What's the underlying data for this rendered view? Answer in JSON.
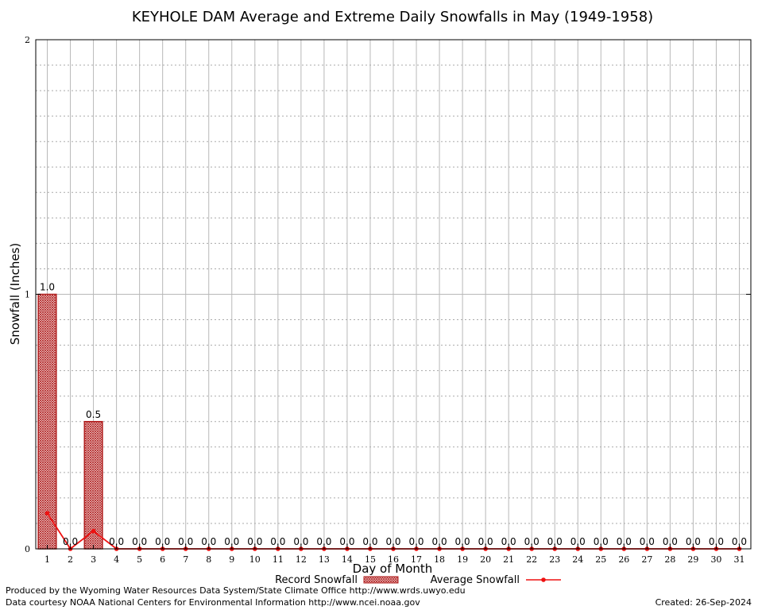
{
  "chart_data": {
    "type": "bar",
    "title": "KEYHOLE DAM Average and Extreme Daily Snowfalls in May (1949-1958)",
    "xlabel": "Day of Month",
    "ylabel": "Snowfall (Inches)",
    "ylim": [
      0,
      2
    ],
    "yticks": [
      "0",
      "1",
      "2"
    ],
    "grid": true,
    "legend_position": "bottom",
    "categories": [
      "1",
      "2",
      "3",
      "4",
      "5",
      "6",
      "7",
      "8",
      "9",
      "10",
      "11",
      "12",
      "13",
      "14",
      "15",
      "16",
      "17",
      "18",
      "19",
      "20",
      "21",
      "22",
      "23",
      "24",
      "25",
      "26",
      "27",
      "28",
      "29",
      "30",
      "31"
    ],
    "series": [
      {
        "name": "Record Snowfall",
        "type": "bar",
        "color": "#b22222",
        "values": [
          1.0,
          0.0,
          0.5,
          0.0,
          0.0,
          0.0,
          0.0,
          0.0,
          0.0,
          0.0,
          0.0,
          0.0,
          0.0,
          0.0,
          0.0,
          0.0,
          0.0,
          0.0,
          0.0,
          0.0,
          0.0,
          0.0,
          0.0,
          0.0,
          0.0,
          0.0,
          0.0,
          0.0,
          0.0,
          0.0,
          0.0
        ],
        "labels": [
          "1.0",
          "0.0",
          "0.5",
          "0.0",
          "0.0",
          "0.0",
          "0.0",
          "0.0",
          "0.0",
          "0.0",
          "0.0",
          "0.0",
          "0.0",
          "0.0",
          "0.0",
          "0.0",
          "0.0",
          "0.0",
          "0.0",
          "0.0",
          "0.0",
          "0.0",
          "0.0",
          "0.0",
          "0.0",
          "0.0",
          "0.0",
          "0.0",
          "0.0",
          "0.0",
          "0.0"
        ]
      },
      {
        "name": "Average Snowfall",
        "type": "line",
        "color": "#ee1111",
        "values": [
          0.14,
          0.0,
          0.07,
          0.0,
          0.0,
          0.0,
          0.0,
          0.0,
          0.0,
          0.0,
          0.0,
          0.0,
          0.0,
          0.0,
          0.0,
          0.0,
          0.0,
          0.0,
          0.0,
          0.0,
          0.0,
          0.0,
          0.0,
          0.0,
          0.0,
          0.0,
          0.0,
          0.0,
          0.0,
          0.0,
          0.0
        ]
      }
    ]
  },
  "footer": {
    "produced_by": "Produced by the Wyoming Water Resources Data System/State Climate Office http://www.wrds.uwyo.edu",
    "data_courtesy": "Data courtesy NOAA National Centers for Environmental Information http://www.ncei.noaa.gov",
    "created": "Created: 26-Sep-2024"
  }
}
